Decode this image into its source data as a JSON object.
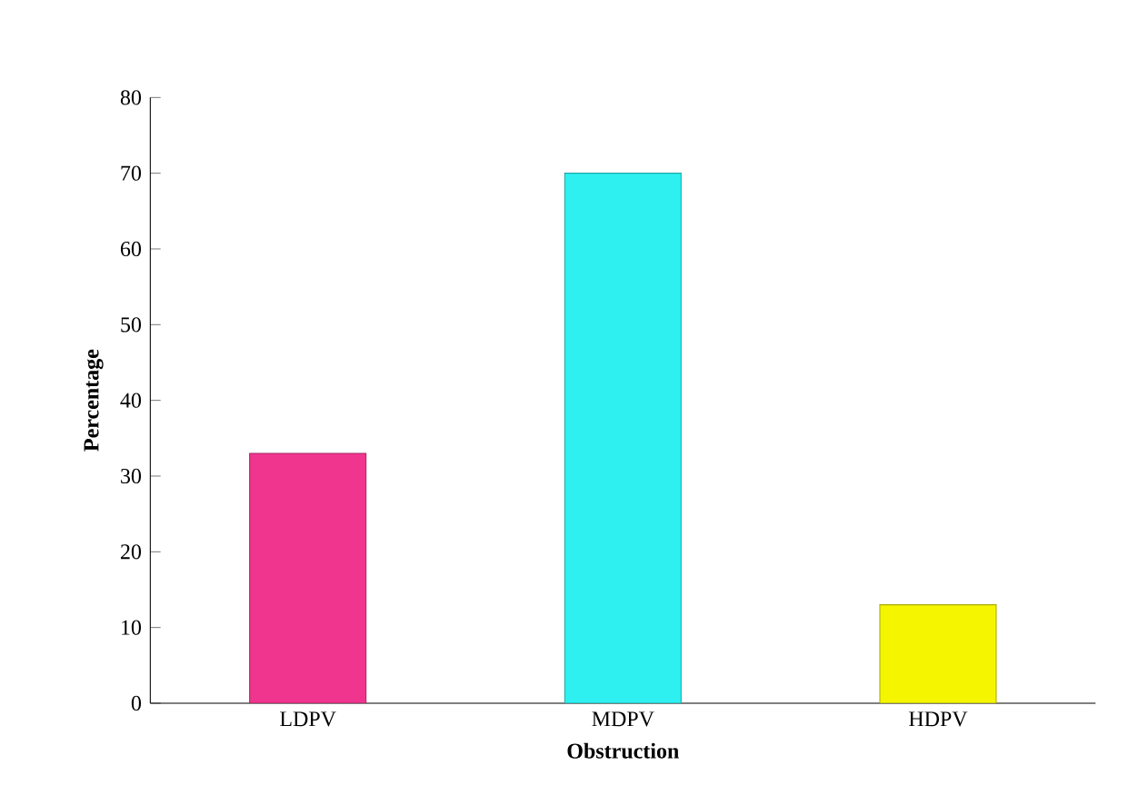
{
  "chart_data": {
    "type": "bar",
    "xlabel": "Obstruction",
    "ylabel": "Percentage",
    "categories": [
      "LDPV",
      "MDPV",
      "HDPV"
    ],
    "values": [
      33,
      70,
      13
    ],
    "colors": [
      "#f0358f",
      "#2ef0f0",
      "#f5f500"
    ],
    "ylim": [
      0,
      80
    ],
    "yticks": [
      0,
      10,
      20,
      30,
      40,
      50,
      60,
      70,
      80
    ],
    "grid": false
  }
}
